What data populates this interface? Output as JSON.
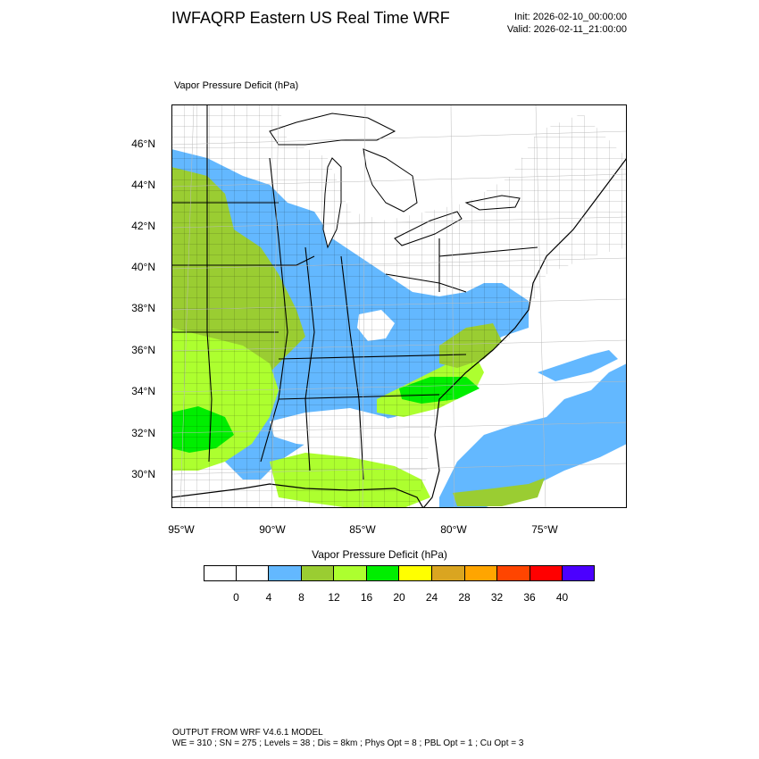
{
  "header": {
    "title": "IWFAQRP Eastern US Real Time WRF",
    "init": "Init: 2026-02-10_00:00:00",
    "valid": "Valid: 2026-02-11_21:00:00"
  },
  "map": {
    "subtitle": "Vapor Pressure Deficit   (hPa)",
    "lat_labels": [
      "46°N",
      "44°N",
      "42°N",
      "40°N",
      "38°N",
      "36°N",
      "34°N",
      "32°N",
      "30°N"
    ],
    "lon_labels": [
      "95°W",
      "90°W",
      "85°W",
      "80°W",
      "75°W"
    ]
  },
  "colorbar": {
    "title": "Vapor Pressure Deficit   (hPa)",
    "colors": [
      "#ffffff",
      "#ffffff",
      "#63b8ff",
      "#9acd32",
      "#adff2f",
      "#00ee00",
      "#ffff00",
      "#daa520",
      "#ffa500",
      "#ff4500",
      "#ff0000",
      "#4b00ff"
    ],
    "labels": [
      "0",
      "4",
      "8",
      "12",
      "16",
      "20",
      "24",
      "28",
      "32",
      "36",
      "40"
    ]
  },
  "footer": {
    "line1": "OUTPUT FROM WRF V4.6.1 MODEL",
    "line2": "WE = 310 ; SN = 275 ; Levels = 38 ; Dis = 8km ; Phys Opt = 8 ; PBL Opt = 1 ; Cu Opt = 3"
  },
  "colors": {
    "vpd_0_4": "#ffffff",
    "vpd_4_8": "#63b8ff",
    "vpd_8_12": "#9acd32",
    "vpd_12_16": "#adff2f",
    "vpd_16_20": "#00ee00"
  }
}
